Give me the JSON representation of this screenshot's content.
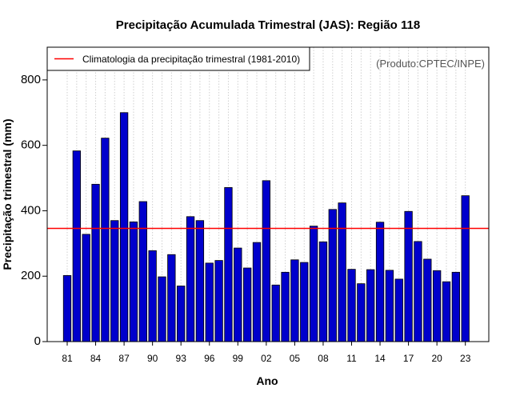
{
  "chart_data": {
    "type": "bar",
    "title": "Precipitação Acumulada Trimestral (JAS): Região 118",
    "xlabel": "Ano",
    "ylabel": "Precipitação trimestral (mm)",
    "ylim": [
      0,
      900
    ],
    "yticks": [
      0,
      200,
      400,
      600,
      800
    ],
    "years": [
      1981,
      1982,
      1983,
      1984,
      1985,
      1986,
      1987,
      1988,
      1989,
      1990,
      1991,
      1992,
      1993,
      1994,
      1995,
      1996,
      1997,
      1998,
      1999,
      2000,
      2001,
      2002,
      2003,
      2004,
      2005,
      2006,
      2007,
      2008,
      2009,
      2010,
      2011,
      2012,
      2013,
      2014,
      2015,
      2016,
      2017,
      2018,
      2019,
      2020,
      2021,
      2022,
      2023
    ],
    "values": [
      202,
      583,
      328,
      481,
      622,
      370,
      700,
      366,
      428,
      278,
      198,
      266,
      170,
      382,
      370,
      240,
      248,
      471,
      286,
      225,
      303,
      492,
      173,
      212,
      250,
      242,
      353,
      305,
      404,
      424,
      221,
      177,
      220,
      365,
      218,
      191,
      398,
      306,
      252,
      217,
      183,
      212,
      446
    ],
    "tick_labels": [
      "81",
      "84",
      "87",
      "90",
      "93",
      "96",
      "99",
      "02",
      "05",
      "08",
      "11",
      "14",
      "17",
      "20",
      "23"
    ],
    "tick_years": [
      1981,
      1984,
      1987,
      1990,
      1993,
      1996,
      1999,
      2002,
      2005,
      2008,
      2011,
      2014,
      2017,
      2020,
      2023
    ],
    "series_name": "Precipitação trimestral",
    "bar_color": "#0000cc",
    "reference_line": {
      "label": "Climatologia da precipitação trimestral (1981-2010)",
      "value": 346,
      "color": "#ff0000"
    },
    "legend_position": "top-left",
    "grid": true,
    "credit": "(Produto:CPTEC/INPE)"
  }
}
